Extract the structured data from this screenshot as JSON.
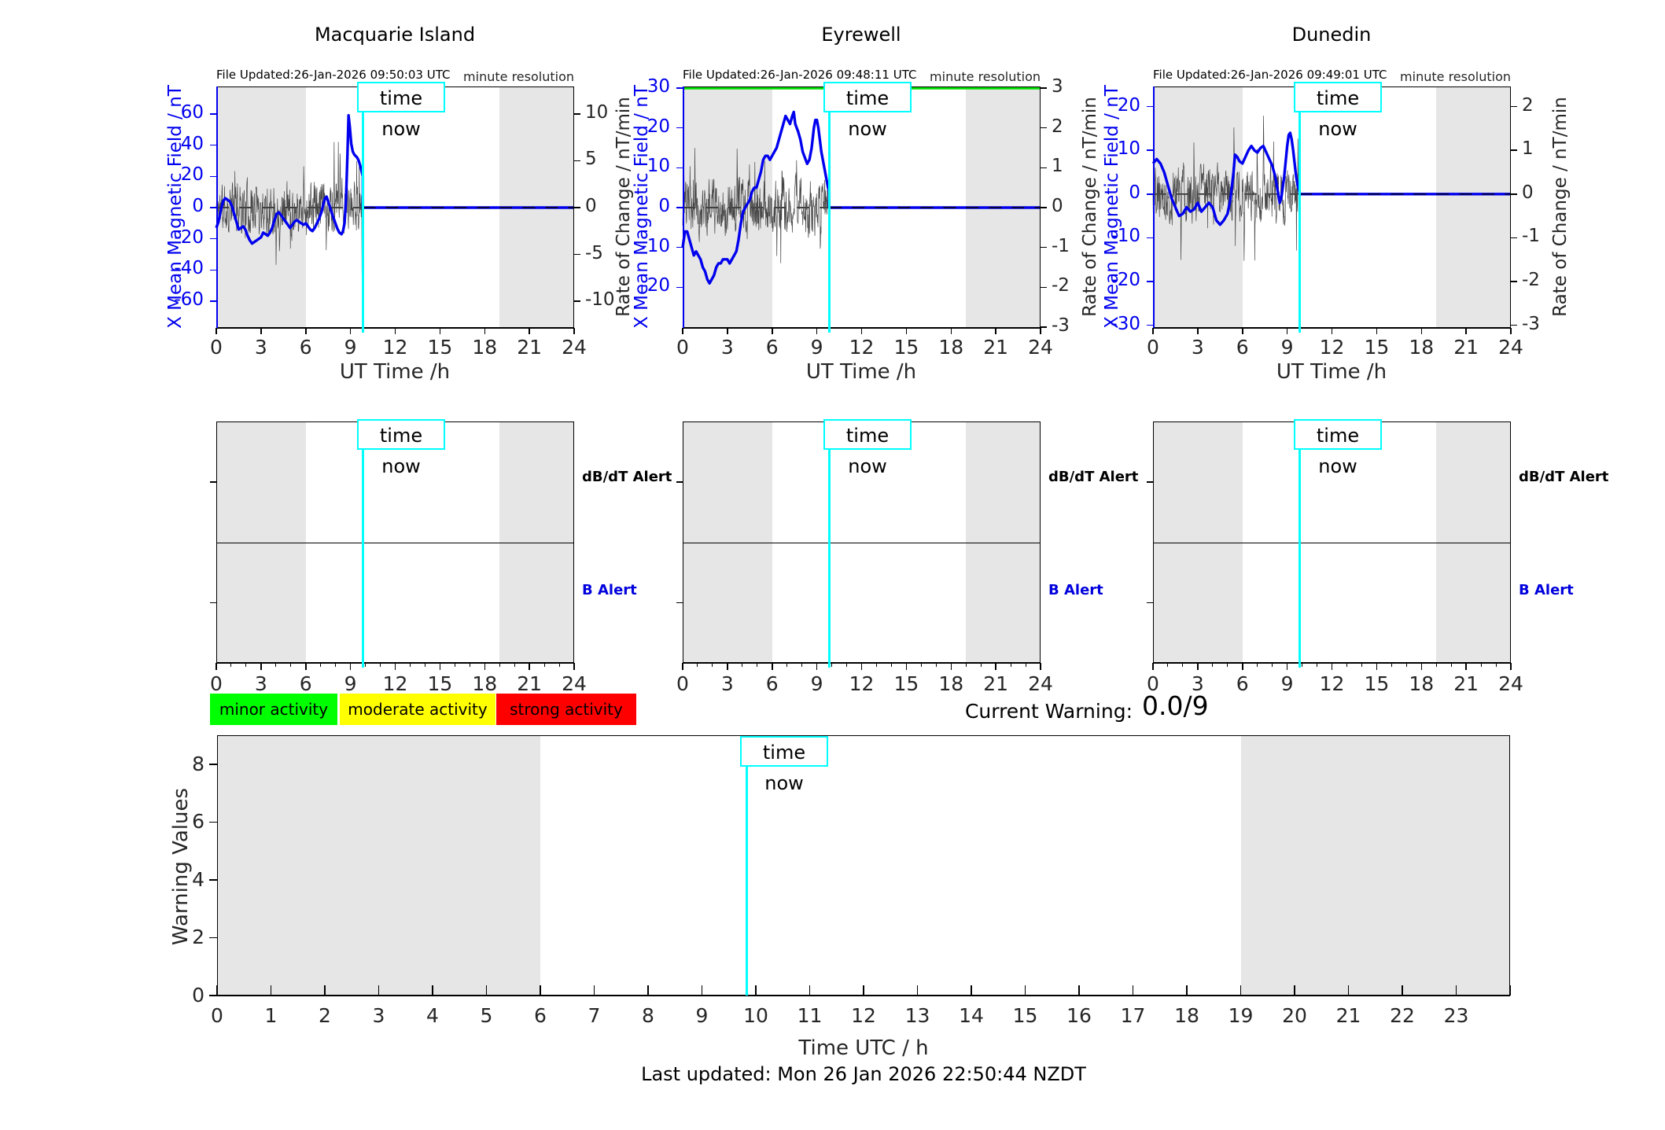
{
  "time_now_label": "time now",
  "colors": {
    "blue": "#0000ee",
    "cyan": "#00ffff",
    "noise": "#474747",
    "band": "#e6e6e6",
    "green_line": "#00e000",
    "axis": "#000000",
    "text": "#262626",
    "legend_green": "#00ff00",
    "legend_yellow": "#ffff00",
    "legend_red": "#ff0000",
    "alert_b_blue": "#0000dd"
  },
  "stations": [
    {
      "title": "Macquarie Island",
      "file_updated": "File Updated:26-Jan-2026 09:50:03 UTC",
      "resolution_note": "minute resolution",
      "ylabel_left": "X Mean Magnetic Field / nT",
      "ylabel_right": "Rate of Change / nT/min",
      "xlabel": "UT Time /h",
      "time_now_label": "time now",
      "alert_labels": {
        "dbdt": "dB/dT Alert",
        "b": "B Alert"
      }
    },
    {
      "title": "Eyrewell",
      "file_updated": "File Updated:26-Jan-2026 09:48:11 UTC",
      "resolution_note": "minute resolution",
      "ylabel_left": "X Mean Magnetic Field / nT",
      "ylabel_right": "Rate of Change / nT/min",
      "xlabel": "UT Time /h",
      "time_now_label": "time now",
      "alert_labels": {
        "dbdt": "dB/dT Alert",
        "b": "B Alert"
      }
    },
    {
      "title": "Dunedin",
      "file_updated": "File Updated:26-Jan-2026 09:49:01 UTC",
      "resolution_note": "minute resolution",
      "ylabel_left": "X Mean Magnetic Field / nT",
      "ylabel_right": "Rate of Change / nT/min",
      "xlabel": "UT Time /h",
      "time_now_label": "time now",
      "alert_labels": {
        "dbdt": "dB/dT Alert",
        "b": "B Alert"
      }
    }
  ],
  "legend": [
    {
      "label": "minor activity",
      "color": "#00ff00"
    },
    {
      "label": "moderate activity",
      "color": "#ffff00"
    },
    {
      "label": "strong activity",
      "color": "#ff0000"
    }
  ],
  "current_warning": {
    "label": "Current Warning:",
    "value": "0.0/9"
  },
  "bottom": {
    "ylabel": "Warning Values",
    "xlabel": "Time UTC / h",
    "time_now_label": "time now"
  },
  "footer": {
    "last_updated": "Last updated: Mon 26 Jan 2026 22:50:44 NZDT"
  },
  "chart_data": {
    "stations": [
      {
        "type": "line",
        "title": "Macquarie Island",
        "xlabel": "UT Time /h",
        "ylabel_left": "X Mean Magnetic Field / nT",
        "ylabel_right": "Rate of Change / nT/min",
        "xlim": [
          0,
          24
        ],
        "xticks": [
          0,
          3,
          6,
          9,
          12,
          15,
          18,
          21,
          24
        ],
        "ylim_left": [
          -77,
          77.5
        ],
        "yticks_left": [
          60,
          40,
          20,
          0,
          -20,
          -40,
          -60
        ],
        "yticks_right": [
          10,
          5,
          0,
          -5,
          -10
        ],
        "left_units_per_right_unit": 6,
        "shaded_hours": [
          [
            0,
            6
          ],
          [
            19,
            24
          ]
        ],
        "time_now_h": 9.83,
        "threshold_line_left_units": null,
        "flat_value_after_time_now": 0,
        "zero_line": 0,
        "x_mean_series_nT": [
          [
            0,
            -13
          ],
          [
            0.15,
            -9
          ],
          [
            0.3,
            -2
          ],
          [
            0.45,
            4
          ],
          [
            0.6,
            6
          ],
          [
            0.75,
            5
          ],
          [
            0.9,
            4
          ],
          [
            1.05,
            1
          ],
          [
            1.2,
            -4
          ],
          [
            1.35,
            -9
          ],
          [
            1.5,
            -14
          ],
          [
            1.65,
            -13
          ],
          [
            1.8,
            -12
          ],
          [
            1.95,
            -14
          ],
          [
            2.1,
            -18
          ],
          [
            2.25,
            -21
          ],
          [
            2.4,
            -23
          ],
          [
            2.55,
            -22
          ],
          [
            2.7,
            -21
          ],
          [
            2.85,
            -20
          ],
          [
            3,
            -19
          ],
          [
            3.15,
            -16
          ],
          [
            3.3,
            -17
          ],
          [
            3.45,
            -18
          ],
          [
            3.6,
            -16
          ],
          [
            3.75,
            -13
          ],
          [
            3.9,
            -8
          ],
          [
            4.05,
            -4
          ],
          [
            4.2,
            -3
          ],
          [
            4.35,
            -5
          ],
          [
            4.5,
            -7
          ],
          [
            4.65,
            -9
          ],
          [
            4.8,
            -11
          ],
          [
            4.95,
            -13
          ],
          [
            5.1,
            -11
          ],
          [
            5.25,
            -9
          ],
          [
            5.4,
            -8
          ],
          [
            5.55,
            -9
          ],
          [
            5.7,
            -10
          ],
          [
            5.85,
            -11
          ],
          [
            6,
            -10
          ],
          [
            6.15,
            -12
          ],
          [
            6.3,
            -14
          ],
          [
            6.45,
            -15
          ],
          [
            6.6,
            -13
          ],
          [
            6.75,
            -10
          ],
          [
            6.9,
            -7
          ],
          [
            7.05,
            -3
          ],
          [
            7.2,
            3
          ],
          [
            7.3,
            6
          ],
          [
            7.4,
            7
          ],
          [
            7.5,
            4
          ],
          [
            7.6,
            1
          ],
          [
            7.7,
            -2
          ],
          [
            7.8,
            -5
          ],
          [
            7.95,
            -9
          ],
          [
            8.1,
            -13
          ],
          [
            8.25,
            -16
          ],
          [
            8.4,
            -17
          ],
          [
            8.5,
            -15
          ],
          [
            8.6,
            -10
          ],
          [
            8.7,
            5
          ],
          [
            8.8,
            35
          ],
          [
            8.87,
            59
          ],
          [
            8.95,
            52
          ],
          [
            9.05,
            41
          ],
          [
            9.15,
            36
          ],
          [
            9.25,
            34
          ],
          [
            9.35,
            33
          ],
          [
            9.45,
            32
          ],
          [
            9.55,
            30
          ],
          [
            9.65,
            27
          ],
          [
            9.75,
            23
          ],
          [
            9.83,
            20
          ]
        ],
        "rate_of_change_noise_nT_min": {
          "seed": 11,
          "amp": 2.3,
          "clip": 7,
          "end_h": 9.83
        }
      },
      {
        "type": "line",
        "title": "Eyrewell",
        "xlabel": "UT Time /h",
        "ylabel_left": "X Mean Magnetic Field / nT",
        "ylabel_right": "Rate of Change / nT/min",
        "xlim": [
          0,
          24
        ],
        "xticks": [
          0,
          3,
          6,
          9,
          12,
          15,
          18,
          21,
          24
        ],
        "ylim_left": [
          -30.2,
          30.4
        ],
        "yticks_left": [
          30,
          20,
          10,
          0,
          -10,
          -20
        ],
        "yticks_right": [
          3,
          2,
          1,
          0,
          -1,
          -2,
          -3
        ],
        "left_units_per_right_unit": 10,
        "shaded_hours": [
          [
            0,
            6
          ],
          [
            19,
            24
          ]
        ],
        "time_now_h": 9.83,
        "threshold_line_left_units": 30,
        "flat_value_after_time_now": 0,
        "zero_line": 0,
        "x_mean_series_nT": [
          [
            0,
            -10
          ],
          [
            0.15,
            -6
          ],
          [
            0.3,
            -6
          ],
          [
            0.45,
            -8
          ],
          [
            0.6,
            -10
          ],
          [
            0.75,
            -12
          ],
          [
            0.9,
            -11
          ],
          [
            1.05,
            -12
          ],
          [
            1.2,
            -13
          ],
          [
            1.35,
            -15
          ],
          [
            1.5,
            -16
          ],
          [
            1.65,
            -18
          ],
          [
            1.8,
            -19
          ],
          [
            1.95,
            -18
          ],
          [
            2.1,
            -17
          ],
          [
            2.25,
            -15
          ],
          [
            2.4,
            -14
          ],
          [
            2.55,
            -14
          ],
          [
            2.7,
            -13
          ],
          [
            2.85,
            -13
          ],
          [
            3,
            -13
          ],
          [
            3.15,
            -14
          ],
          [
            3.3,
            -13
          ],
          [
            3.45,
            -12
          ],
          [
            3.6,
            -11
          ],
          [
            3.75,
            -8
          ],
          [
            3.9,
            -4
          ],
          [
            4.05,
            -1
          ],
          [
            4.2,
            0
          ],
          [
            4.35,
            1
          ],
          [
            4.5,
            2
          ],
          [
            4.65,
            4
          ],
          [
            4.8,
            5
          ],
          [
            4.95,
            5
          ],
          [
            5.1,
            7
          ],
          [
            5.25,
            9
          ],
          [
            5.4,
            12
          ],
          [
            5.55,
            13
          ],
          [
            5.7,
            13
          ],
          [
            5.85,
            12
          ],
          [
            6,
            13
          ],
          [
            6.15,
            14
          ],
          [
            6.3,
            15
          ],
          [
            6.45,
            17
          ],
          [
            6.6,
            19
          ],
          [
            6.75,
            21
          ],
          [
            6.9,
            23
          ],
          [
            7.05,
            22
          ],
          [
            7.2,
            21
          ],
          [
            7.35,
            23
          ],
          [
            7.45,
            24
          ],
          [
            7.55,
            21
          ],
          [
            7.65,
            20
          ],
          [
            7.75,
            19
          ],
          [
            7.9,
            17
          ],
          [
            8.05,
            14
          ],
          [
            8.2,
            12.5
          ],
          [
            8.35,
            11
          ],
          [
            8.5,
            12
          ],
          [
            8.65,
            15
          ],
          [
            8.8,
            20
          ],
          [
            8.9,
            22
          ],
          [
            9,
            22
          ],
          [
            9.1,
            20
          ],
          [
            9.2,
            17
          ],
          [
            9.3,
            14
          ],
          [
            9.45,
            11
          ],
          [
            9.55,
            9
          ],
          [
            9.65,
            7
          ],
          [
            9.75,
            5
          ],
          [
            9.83,
            4
          ]
        ],
        "rate_of_change_noise_nT_min": {
          "seed": 23,
          "amp": 0.55,
          "clip": 2.35,
          "end_h": 9.83
        }
      },
      {
        "type": "line",
        "title": "Dunedin",
        "xlabel": "UT Time /h",
        "ylabel_left": "X Mean Magnetic Field / nT",
        "ylabel_right": "Rate of Change / nT/min",
        "xlim": [
          0,
          24
        ],
        "xticks": [
          0,
          3,
          6,
          9,
          12,
          15,
          18,
          21,
          24
        ],
        "ylim_left": [
          -30.6,
          24.6
        ],
        "yticks_left": [
          20,
          10,
          0,
          -10,
          -20,
          -30
        ],
        "yticks_right": [
          2,
          1,
          0,
          -1,
          -2,
          -3
        ],
        "left_units_per_right_unit": 10,
        "shaded_hours": [
          [
            0,
            6
          ],
          [
            19,
            24
          ]
        ],
        "time_now_h": 9.83,
        "threshold_line_left_units": null,
        "flat_value_after_time_now": 0,
        "zero_line": 0,
        "x_mean_series_nT": [
          [
            0,
            7
          ],
          [
            0.25,
            8
          ],
          [
            0.5,
            7
          ],
          [
            0.75,
            5
          ],
          [
            1,
            2
          ],
          [
            1.25,
            -1
          ],
          [
            1.5,
            -3
          ],
          [
            1.75,
            -5
          ],
          [
            2,
            -4.5
          ],
          [
            2.25,
            -3
          ],
          [
            2.5,
            -4
          ],
          [
            2.75,
            -3.5
          ],
          [
            3,
            -2
          ],
          [
            3.25,
            -4
          ],
          [
            3.5,
            -3
          ],
          [
            3.75,
            -2
          ],
          [
            4,
            -3
          ],
          [
            4.25,
            -6
          ],
          [
            4.5,
            -7
          ],
          [
            4.75,
            -6
          ],
          [
            5,
            -4.5
          ],
          [
            5.2,
            -1
          ],
          [
            5.4,
            5
          ],
          [
            5.5,
            9
          ],
          [
            5.65,
            8.5
          ],
          [
            5.8,
            7.5
          ],
          [
            6,
            7
          ],
          [
            6.2,
            8.5
          ],
          [
            6.4,
            10
          ],
          [
            6.6,
            11
          ],
          [
            6.8,
            10
          ],
          [
            7,
            9.5
          ],
          [
            7.2,
            10.5
          ],
          [
            7.4,
            11
          ],
          [
            7.6,
            9.5
          ],
          [
            7.8,
            8
          ],
          [
            8,
            6.5
          ],
          [
            8.2,
            4
          ],
          [
            8.4,
            0
          ],
          [
            8.5,
            -2
          ],
          [
            8.6,
            -1
          ],
          [
            8.8,
            4
          ],
          [
            9,
            11
          ],
          [
            9.1,
            13.5
          ],
          [
            9.2,
            14
          ],
          [
            9.3,
            12.5
          ],
          [
            9.4,
            10
          ],
          [
            9.5,
            7
          ],
          [
            9.6,
            4
          ],
          [
            9.7,
            2
          ],
          [
            9.83,
            0.5
          ]
        ],
        "rate_of_change_noise_nT_min": {
          "seed": 37,
          "amp": 0.5,
          "clip": 2.45,
          "end_h": 9.83
        }
      }
    ],
    "alert_panels": {
      "count": 3,
      "xlim": [
        0,
        24
      ],
      "xticks": [
        0,
        3,
        6,
        9,
        12,
        15,
        18,
        21,
        24
      ],
      "minor_tick_every_h": 1,
      "shaded_hours": [
        [
          0,
          6
        ],
        [
          19,
          24
        ]
      ],
      "time_now_h": 9.83,
      "level_fracs": {
        "dbdt": 0.25,
        "b": 0.75
      },
      "events": []
    },
    "warning_chart": {
      "type": "line",
      "ylabel": "Warning Values",
      "xlabel": "Time UTC / h",
      "ylim": [
        0,
        9
      ],
      "yticks": [
        0,
        2,
        4,
        6,
        8
      ],
      "xlim": [
        0,
        24
      ],
      "xtick_labels": [
        0,
        1,
        2,
        3,
        4,
        5,
        6,
        7,
        8,
        9,
        10,
        11,
        12,
        13,
        14,
        15,
        16,
        17,
        18,
        19,
        20,
        21,
        22,
        23
      ],
      "shaded_hours": [
        [
          0,
          6
        ],
        [
          19,
          24
        ]
      ],
      "time_now_h": 9.83,
      "current_warning_value": "0.0/9",
      "values": []
    }
  }
}
